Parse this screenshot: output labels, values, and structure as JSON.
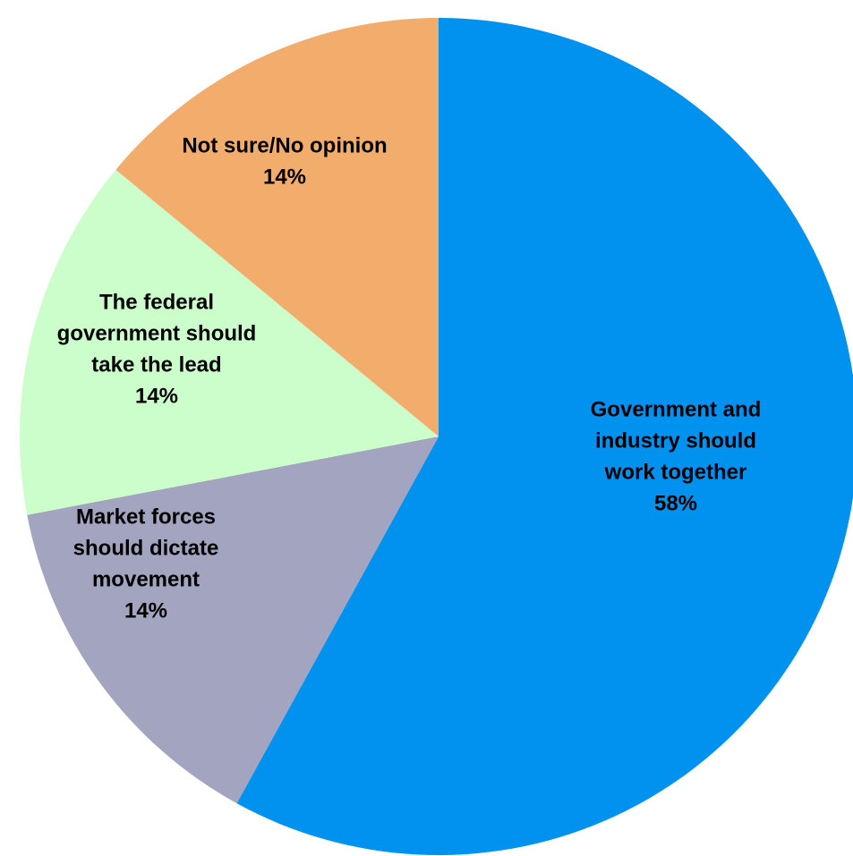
{
  "chart_data": {
    "type": "pie",
    "title": "",
    "start_angle_deg": 0,
    "direction": "clockwise",
    "slices": [
      {
        "label_lines": [
          "Government and",
          "industry should",
          "work together"
        ],
        "value_label": "58%",
        "value": 58,
        "color": "#0092ee"
      },
      {
        "label_lines": [
          "Market forces",
          "should dictate",
          "movement"
        ],
        "value_label": "14%",
        "value": 14,
        "color": "#a2a4c0"
      },
      {
        "label_lines": [
          "The federal",
          "government should",
          "take the lead"
        ],
        "value_label": "14%",
        "value": 14,
        "color": "#ccfecc"
      },
      {
        "label_lines": [
          "Not sure/No opinion"
        ],
        "value_label": "14%",
        "value": 14,
        "color": "#f2ad6c"
      }
    ]
  }
}
